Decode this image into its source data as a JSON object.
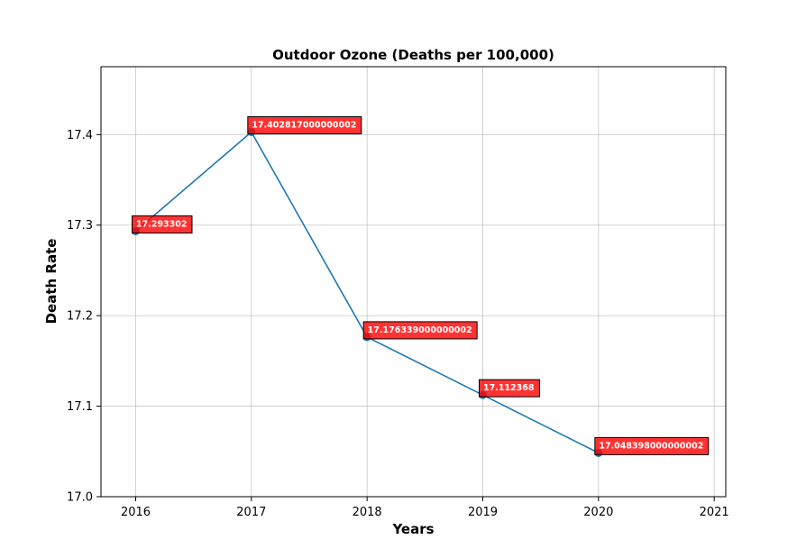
{
  "chart_data": {
    "type": "line",
    "title": "Outdoor Ozone (Deaths per 100,000)",
    "xlabel": "Years",
    "ylabel": "Death Rate",
    "x": [
      2016,
      2017,
      2018,
      2019,
      2020
    ],
    "series": [
      {
        "values": [
          17.293302,
          17.402817000000002,
          17.176339000000002,
          17.112368,
          17.048398000000002
        ],
        "labels": [
          "17.293302",
          "17.402817000000002",
          "17.176339000000002",
          "17.112368",
          "17.048398000000002"
        ],
        "color": "#1f77b4"
      }
    ],
    "xlim": [
      2015.7,
      2021.1
    ],
    "ylim": [
      17.0,
      17.475
    ],
    "xticks": [
      "2016",
      "2017",
      "2018",
      "2019",
      "2020",
      "2021"
    ],
    "yticks": [
      "17.0",
      "17.1",
      "17.2",
      "17.3",
      "17.4"
    ],
    "grid": true,
    "label_box_color": "#ff0000",
    "label_text_color": "#ffffff"
  }
}
